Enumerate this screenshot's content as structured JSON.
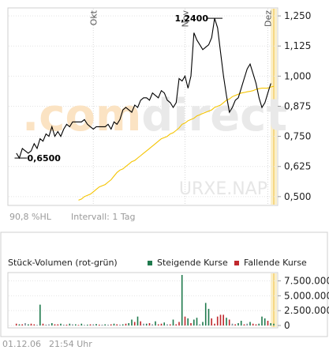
{
  "colors": {
    "price_line": "#000000",
    "avg_line": "#f5c400",
    "rising": "#1f7a4d",
    "falling": "#c0282d",
    "neutral": "#7a8a96",
    "highlight_band": "#fbefc8",
    "watermark_orange": "#fbe3c3",
    "watermark_grey": "#e9e9e9"
  },
  "watermark": {
    "part1": ".com",
    "part2": "direct",
    "symbol": "URXE.NAP"
  },
  "price_chart": {
    "months": [
      "Okt",
      "Nov",
      "Dez"
    ],
    "info_left": "90,8 %HL",
    "info_right": "Intervall: 1 Tag",
    "max_label": "1,2400",
    "min_label": "0,6500"
  },
  "volume_chart": {
    "title": "Stück-Volumen (rot-grün)",
    "legend_rising": "Steigende Kurse",
    "legend_falling": "Fallende Kurse"
  },
  "footer": {
    "date": "01.12.06",
    "time": "21:54 Uhr"
  },
  "chart_data": [
    {
      "type": "line",
      "y_ticks": [
        "1,250",
        "1,125",
        "1,000",
        "0,875",
        "0,750",
        "0,625",
        "0,500"
      ],
      "y_tick_values": [
        1.25,
        1.125,
        1.0,
        0.875,
        0.75,
        0.625,
        0.5
      ],
      "ylim": [
        0.47,
        1.27
      ],
      "x_range": [
        0,
        88
      ],
      "month_positions": [
        27,
        58,
        86
      ],
      "series": [
        {
          "values": [
            0.68,
            0.66,
            0.7,
            0.69,
            0.68,
            0.69,
            0.72,
            0.7,
            0.74,
            0.73,
            0.76,
            0.75,
            0.79,
            0.75,
            0.77,
            0.75,
            0.78,
            0.8,
            0.79,
            0.81,
            0.81,
            0.81,
            0.81,
            0.82,
            0.8,
            0.79,
            0.78,
            0.79,
            0.79,
            0.79,
            0.79,
            0.8,
            0.78,
            0.81,
            0.8,
            0.82,
            0.86,
            0.87,
            0.86,
            0.85,
            0.88,
            0.87,
            0.9,
            0.91,
            0.91,
            0.9,
            0.93,
            0.92,
            0.91,
            0.94,
            0.93,
            0.9,
            0.89,
            0.87,
            0.89,
            0.99,
            0.98,
            1.0,
            0.95,
            1.0,
            1.18,
            1.15,
            1.13,
            1.11,
            1.12,
            1.13,
            1.16,
            1.24,
            1.2,
            1.1,
            1.0,
            0.92,
            0.85,
            0.87,
            0.9,
            0.91,
            0.95,
            0.99,
            1.03,
            1.05,
            1.01,
            0.97,
            0.91,
            0.87,
            0.89,
            0.93,
            0.97
          ],
          "x_start": 1
        },
        {
          "values": [
            0.485,
            0.49,
            0.5,
            0.505,
            0.51,
            0.52,
            0.53,
            0.54,
            0.545,
            0.55,
            0.56,
            0.57,
            0.585,
            0.6,
            0.61,
            0.615,
            0.625,
            0.635,
            0.645,
            0.65,
            0.66,
            0.67,
            0.68,
            0.69,
            0.7,
            0.71,
            0.72,
            0.73,
            0.74,
            0.745,
            0.75,
            0.76,
            0.765,
            0.775,
            0.785,
            0.8,
            0.805,
            0.815,
            0.82,
            0.825,
            0.835,
            0.84,
            0.845,
            0.85,
            0.855,
            0.86,
            0.87,
            0.875,
            0.88,
            0.89,
            0.9,
            0.905,
            0.915,
            0.92,
            0.925,
            0.93,
            0.932,
            0.935,
            0.937,
            0.94,
            0.945,
            0.948,
            0.95,
            0.95,
            0.95,
            0.955,
            0.958
          ],
          "x_start": 22
        }
      ]
    },
    {
      "type": "bar",
      "y_ticks": [
        "7.500.000",
        "5.000.000",
        "2.500.000",
        "0"
      ],
      "y_tick_values": [
        7500000,
        5000000,
        2500000,
        0
      ],
      "ylim": [
        0,
        8500000
      ],
      "x_range": [
        0,
        88
      ],
      "x_start": 1,
      "values": [
        300000,
        200000,
        200000,
        400000,
        200000,
        300000,
        200000,
        100000,
        3500000,
        300000,
        150000,
        200000,
        400000,
        200000,
        200000,
        300000,
        150000,
        150000,
        300000,
        200000,
        200000,
        100000,
        300000,
        100000,
        150000,
        200000,
        200000,
        250000,
        150000,
        150000,
        200000,
        150000,
        200000,
        300000,
        200000,
        150000,
        200000,
        300000,
        400000,
        1000000,
        600000,
        1500000,
        700000,
        300000,
        300000,
        400000,
        200000,
        700000,
        200000,
        300000,
        500000,
        200000,
        200000,
        1000000,
        200000,
        600000,
        8500000,
        1500000,
        1200000,
        400000,
        1000000,
        1300000,
        200000,
        600000,
        3800000,
        2800000,
        1200000,
        300000,
        1500000,
        1800000,
        1800000,
        1300000,
        1000000,
        300000,
        200000,
        400000,
        800000,
        200000,
        300000,
        600000,
        300000,
        200000,
        300000,
        1500000,
        1200000,
        800000,
        400000,
        300000
      ],
      "direction": [
        "f",
        "r",
        "f",
        "n",
        "r",
        "f",
        "f",
        "n",
        "r",
        "f",
        "n",
        "n",
        "r",
        "f",
        "f",
        "r",
        "n",
        "f",
        "r",
        "n",
        "r",
        "f",
        "r",
        "n",
        "r",
        "f",
        "n",
        "r",
        "f",
        "n",
        "r",
        "n",
        "f",
        "r",
        "f",
        "n",
        "r",
        "f",
        "r",
        "r",
        "f",
        "r",
        "f",
        "n",
        "r",
        "f",
        "n",
        "r",
        "f",
        "f",
        "r",
        "n",
        "f",
        "r",
        "f",
        "f",
        "r",
        "f",
        "r",
        "f",
        "r",
        "r",
        "n",
        "r",
        "r",
        "r",
        "f",
        "f",
        "f",
        "f",
        "f",
        "r",
        "f",
        "n",
        "f",
        "r",
        "r",
        "f",
        "n",
        "r",
        "f",
        "f",
        "r",
        "r",
        "r",
        "f",
        "r",
        "r"
      ]
    }
  ]
}
